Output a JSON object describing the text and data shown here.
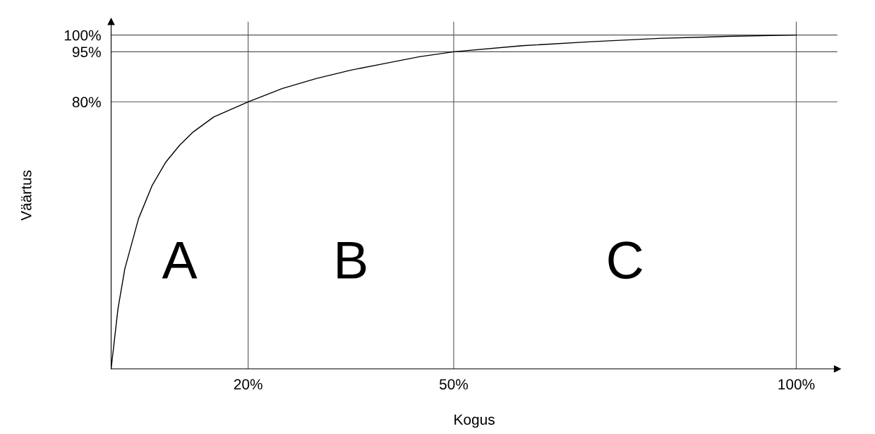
{
  "chart_data": {
    "type": "line",
    "xlabel": "Kogus",
    "ylabel": "Väärtus",
    "x": [
      0,
      1,
      2,
      4,
      6,
      8,
      10,
      12,
      15,
      20,
      25,
      30,
      35,
      40,
      45,
      50,
      60,
      70,
      80,
      90,
      100
    ],
    "series": [
      {
        "color": "#000000",
        "values": [
          0,
          18,
          30,
          45,
          55,
          62,
          67,
          71,
          75.5,
          80,
          84,
          87,
          89.5,
          91.5,
          93.5,
          95,
          96.8,
          98,
          99,
          99.6,
          100
        ]
      }
    ],
    "xlim": [
      0,
      106
    ],
    "ylim": [
      0,
      104
    ],
    "xticks": [
      {
        "value": 20,
        "label": "20%"
      },
      {
        "value": 50,
        "label": "50%"
      },
      {
        "value": 100,
        "label": "100%"
      }
    ],
    "yticks": [
      {
        "value": 80,
        "label": "80%"
      },
      {
        "value": 95,
        "label": "95%"
      },
      {
        "value": 100,
        "label": "100%"
      }
    ],
    "grid": true,
    "marker": "none",
    "line_style": "solid",
    "annotations": [
      "A",
      "B",
      "C"
    ]
  }
}
